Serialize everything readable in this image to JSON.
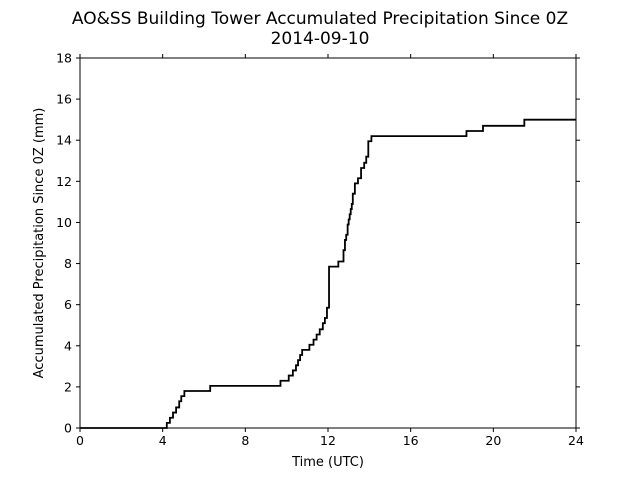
{
  "chart_data": {
    "type": "line",
    "title": "AO&SS Building Tower Accumulated Precipitation Since 0Z",
    "subtitle": "2014-09-10",
    "xlabel": "Time (UTC)",
    "ylabel": "Accumulated Precipitation Since 0Z (mm)",
    "xlim": [
      0,
      24
    ],
    "ylim": [
      0,
      18
    ],
    "xticks": [
      0,
      4,
      8,
      12,
      16,
      20,
      24
    ],
    "yticks": [
      0,
      2,
      4,
      6,
      8,
      10,
      12,
      14,
      16,
      18
    ],
    "grid": false,
    "line_color": "#000000",
    "step": "post",
    "series": [
      {
        "x": [
          0,
          4.2,
          4.35,
          4.5,
          4.65,
          4.8,
          4.9,
          5.05,
          6.3,
          9.7,
          10.1,
          10.3,
          10.45,
          10.55,
          10.65,
          10.75,
          10.85,
          11.1,
          11.3,
          11.45,
          11.6,
          11.75,
          11.85,
          11.95,
          12.05,
          12.5,
          12.75,
          12.82,
          12.88,
          12.95,
          13.0,
          13.05,
          13.1,
          13.15,
          13.2,
          13.3,
          13.45,
          13.6,
          13.75,
          13.85,
          13.95,
          14.1,
          18.7,
          19.5,
          21.5,
          24
        ],
        "y": [
          0,
          0.25,
          0.5,
          0.75,
          1.0,
          1.3,
          1.55,
          1.8,
          2.05,
          2.3,
          2.55,
          2.8,
          3.05,
          3.3,
          3.55,
          3.8,
          3.8,
          4.05,
          4.3,
          4.55,
          4.8,
          5.1,
          5.35,
          5.85,
          7.85,
          8.1,
          8.65,
          9.15,
          9.4,
          9.9,
          10.15,
          10.4,
          10.65,
          10.9,
          11.4,
          11.9,
          12.15,
          12.65,
          12.9,
          13.2,
          13.95,
          14.2,
          14.45,
          14.7,
          15.0,
          15.0
        ]
      }
    ]
  }
}
